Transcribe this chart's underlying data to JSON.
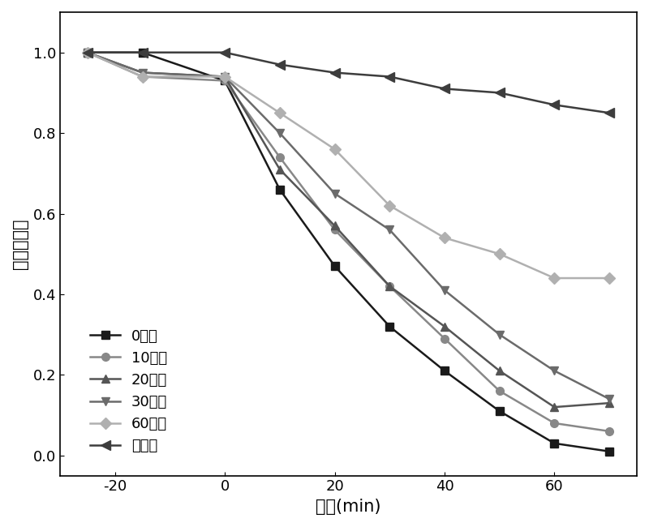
{
  "series": [
    {
      "label": "0分钟",
      "color": "#1a1a1a",
      "marker": "s",
      "markersize": 7,
      "linewidth": 1.8,
      "x": [
        -25,
        -15,
        0,
        10,
        20,
        30,
        40,
        50,
        60,
        70
      ],
      "y": [
        1.0,
        1.0,
        0.93,
        0.66,
        0.47,
        0.32,
        0.21,
        0.11,
        0.03,
        0.01
      ]
    },
    {
      "label": "10分钟",
      "color": "#888888",
      "marker": "o",
      "markersize": 7,
      "linewidth": 1.8,
      "x": [
        -25,
        -15,
        0,
        10,
        20,
        30,
        40,
        50,
        60,
        70
      ],
      "y": [
        1.0,
        0.94,
        0.93,
        0.74,
        0.56,
        0.42,
        0.29,
        0.16,
        0.08,
        0.06
      ]
    },
    {
      "label": "20分钟",
      "color": "#555555",
      "marker": "^",
      "markersize": 7,
      "linewidth": 1.8,
      "x": [
        -25,
        -15,
        0,
        10,
        20,
        30,
        40,
        50,
        60,
        70
      ],
      "y": [
        1.0,
        0.95,
        0.94,
        0.71,
        0.57,
        0.42,
        0.32,
        0.21,
        0.12,
        0.13
      ]
    },
    {
      "label": "30分钟",
      "color": "#6b6b6b",
      "marker": "v",
      "markersize": 7,
      "linewidth": 1.8,
      "x": [
        -25,
        -15,
        0,
        10,
        20,
        30,
        40,
        50,
        60,
        70
      ],
      "y": [
        1.0,
        0.95,
        0.94,
        0.8,
        0.65,
        0.56,
        0.41,
        0.3,
        0.21,
        0.14
      ]
    },
    {
      "label": "60分钟",
      "color": "#b0b0b0",
      "marker": "D",
      "markersize": 7,
      "linewidth": 1.8,
      "x": [
        -25,
        -15,
        0,
        10,
        20,
        30,
        40,
        50,
        60,
        70
      ],
      "y": [
        1.0,
        0.94,
        0.94,
        0.85,
        0.76,
        0.62,
        0.54,
        0.5,
        0.44,
        0.44
      ]
    },
    {
      "label": "空白样",
      "color": "#3d3d3d",
      "marker": "<",
      "markersize": 8,
      "linewidth": 1.8,
      "x": [
        -25,
        -15,
        0,
        10,
        20,
        30,
        40,
        50,
        60,
        70
      ],
      "y": [
        1.0,
        1.0,
        1.0,
        0.97,
        0.95,
        0.94,
        0.91,
        0.9,
        0.87,
        0.85
      ]
    }
  ],
  "xlabel": "时间(min)",
  "ylabel": "相对吸光度",
  "xlim": [
    -30,
    75
  ],
  "ylim": [
    -0.05,
    1.1
  ],
  "xticks": [
    -20,
    0,
    20,
    40,
    60
  ],
  "yticks": [
    0.0,
    0.2,
    0.4,
    0.6,
    0.8,
    1.0
  ],
  "background_color": "#ffffff",
  "figure_size": [
    8.0,
    6.5
  ],
  "dpi": 100,
  "font_size_axis": 15,
  "font_size_legend": 13,
  "font_size_tick": 13
}
